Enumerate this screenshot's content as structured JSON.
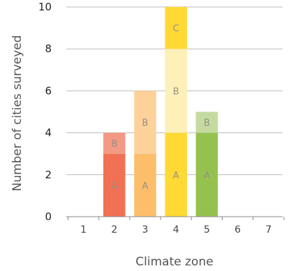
{
  "chart_data": {
    "type": "bar",
    "stacked": true,
    "categories": [
      "1",
      "2",
      "3",
      "4",
      "5",
      "6",
      "7"
    ],
    "series": [
      {
        "name": "A",
        "values": [
          0,
          3,
          3,
          4,
          4,
          0,
          0
        ]
      },
      {
        "name": "B",
        "values": [
          0,
          1,
          3,
          4,
          1,
          0,
          0
        ]
      },
      {
        "name": "C",
        "values": [
          0,
          0,
          0,
          2,
          0,
          0,
          0
        ]
      }
    ],
    "segment_colors": {
      "1": [
        "#f0ede8",
        "#f6f4f0",
        "#fbfaf8"
      ],
      "2": [
        "#f07153",
        "#f39a85",
        "#f8c4b6"
      ],
      "3": [
        "#fcbe6a",
        "#fdd19a",
        "#fee3c4"
      ],
      "4": [
        "#ffd934",
        "#fdf0b8",
        "#ffd934"
      ],
      "5": [
        "#95c24f",
        "#c4dba0",
        "#dde9c8"
      ],
      "6": [
        "#eef3f7",
        "#f4f7fa",
        "#fafbfd"
      ],
      "7": [
        "#eef3f7",
        "#f4f7fa",
        "#fafbfd"
      ]
    },
    "title": "",
    "xlabel": "Climate zone",
    "ylabel": "Number of cities surveyed",
    "ylim": [
      0,
      10
    ],
    "yticks": [
      0,
      2,
      4,
      6,
      8,
      10
    ],
    "grid": true,
    "gridline_color": "#bbbbbb",
    "axis_color": "#888888",
    "legend": "none"
  }
}
